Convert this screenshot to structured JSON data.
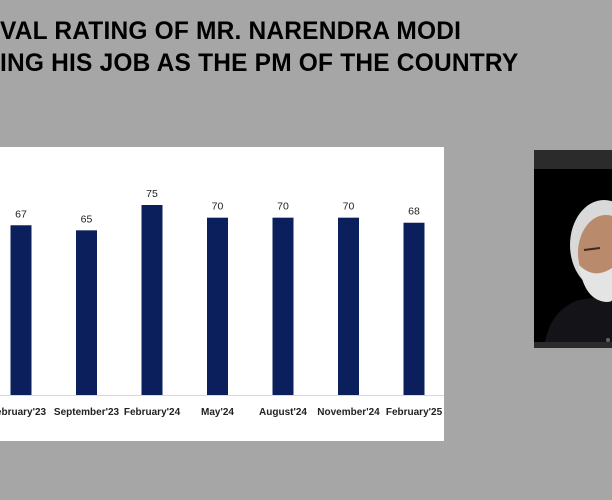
{
  "title": {
    "line1": "VAL RATING OF MR. NARENDRA MODI",
    "line2": "ING HIS JOB AS THE PM OF THE COUNTRY"
  },
  "chart_data": {
    "type": "bar",
    "categories": [
      "ebruary'23",
      "September'23",
      "February'24",
      "May'24",
      "August'24",
      "November'24",
      "February'25"
    ],
    "values": [
      67,
      65,
      75,
      70,
      70,
      70,
      68
    ],
    "data_labels": [
      "67",
      "65",
      "75",
      "70",
      "70",
      "70",
      "68"
    ],
    "bar_color": "#0b1f5c",
    "ylim": [
      0,
      80
    ],
    "grid": false,
    "legend": "none"
  },
  "photo": {
    "icon": "portrait-photo"
  }
}
